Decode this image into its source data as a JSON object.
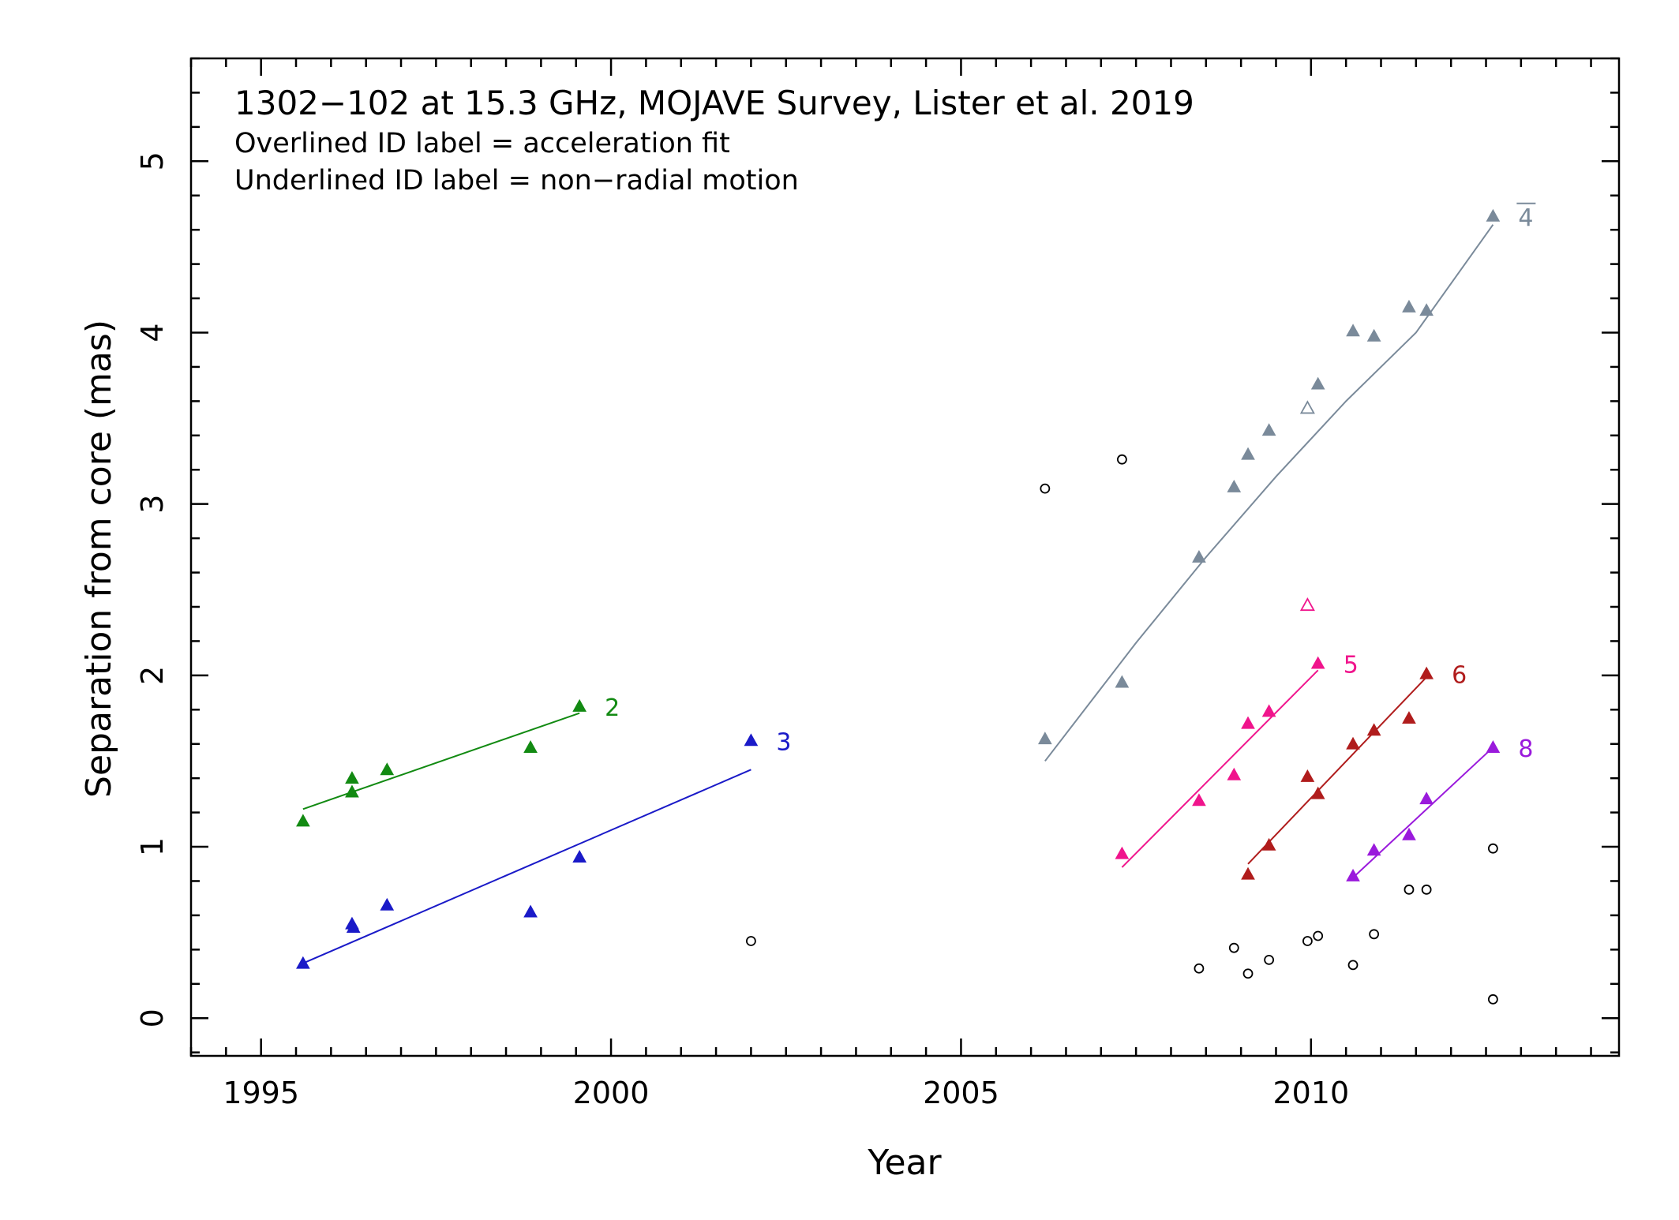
{
  "chart_data": {
    "type": "scatter",
    "title": "1302−102 at 15.3 GHz, MOJAVE Survey, Lister et al. 2019",
    "subtitle_lines": [
      "Overlined ID label = acceleration fit",
      "Underlined ID label = non−radial motion"
    ],
    "xlabel": "Year",
    "ylabel": "Separation from core (mas)",
    "xlim": [
      1994,
      2014.4
    ],
    "ylim": [
      -0.22,
      5.6
    ],
    "xticks": [
      1995,
      2000,
      2005,
      2010
    ],
    "yticks": [
      0,
      1,
      2,
      3,
      4,
      5
    ],
    "grid": false,
    "legend": "none",
    "core_points": {
      "marker": "open-circle",
      "color": "#000000",
      "points": [
        [
          2002.0,
          0.45
        ],
        [
          2006.2,
          3.09
        ],
        [
          2007.3,
          3.26
        ],
        [
          2008.4,
          0.29
        ],
        [
          2008.9,
          0.41
        ],
        [
          2009.1,
          0.26
        ],
        [
          2009.4,
          0.34
        ],
        [
          2009.95,
          0.45
        ],
        [
          2010.1,
          0.48
        ],
        [
          2010.6,
          0.31
        ],
        [
          2010.9,
          0.49
        ],
        [
          2011.4,
          0.75
        ],
        [
          2011.65,
          0.75
        ],
        [
          2012.6,
          0.99
        ],
        [
          2012.6,
          0.11
        ]
      ]
    },
    "series": [
      {
        "name": "2",
        "color": "#128a12",
        "label_decoration": "none",
        "points": [
          [
            1995.6,
            1.15
          ],
          [
            1996.3,
            1.32
          ],
          [
            1996.3,
            1.4
          ],
          [
            1996.8,
            1.45
          ],
          [
            1998.85,
            1.58
          ],
          [
            1999.55,
            1.82
          ]
        ],
        "open_points": [],
        "fit": [
          [
            1995.6,
            1.22
          ],
          [
            1999.55,
            1.78
          ]
        ]
      },
      {
        "name": "3",
        "color": "#1a1ac8",
        "label_decoration": "none",
        "points": [
          [
            1995.6,
            0.32
          ],
          [
            1996.3,
            0.55
          ],
          [
            1996.32,
            0.53
          ],
          [
            1996.8,
            0.66
          ],
          [
            1998.85,
            0.62
          ],
          [
            1999.55,
            0.94
          ],
          [
            2002.0,
            1.62
          ]
        ],
        "open_points": [],
        "fit": [
          [
            1995.6,
            0.32
          ],
          [
            2002.0,
            1.45
          ]
        ]
      },
      {
        "name": "4",
        "color": "#7a8a9a",
        "label_decoration": "overline",
        "points": [
          [
            2006.2,
            1.63
          ],
          [
            2007.3,
            1.96
          ],
          [
            2008.4,
            2.69
          ],
          [
            2008.9,
            3.1
          ],
          [
            2009.1,
            3.29
          ],
          [
            2009.4,
            3.43
          ],
          [
            2010.1,
            3.7
          ],
          [
            2010.6,
            4.01
          ],
          [
            2010.9,
            3.98
          ],
          [
            2011.4,
            4.15
          ],
          [
            2011.65,
            4.13
          ],
          [
            2012.6,
            4.68
          ]
        ],
        "open_points": [
          [
            2009.95,
            3.56
          ]
        ],
        "fit": [
          [
            2006.2,
            1.5
          ],
          [
            2007.5,
            2.19
          ],
          [
            2008.5,
            2.69
          ],
          [
            2009.5,
            3.16
          ],
          [
            2010.5,
            3.6
          ],
          [
            2011.5,
            4.0
          ],
          [
            2012.6,
            4.63
          ]
        ]
      },
      {
        "name": "5",
        "color": "#f0148c",
        "label_decoration": "none",
        "points": [
          [
            2007.3,
            0.96
          ],
          [
            2008.4,
            1.27
          ],
          [
            2008.9,
            1.42
          ],
          [
            2009.1,
            1.72
          ],
          [
            2009.4,
            1.79
          ],
          [
            2010.1,
            2.07
          ]
        ],
        "open_points": [
          [
            2009.95,
            2.41
          ]
        ],
        "fit": [
          [
            2007.3,
            0.88
          ],
          [
            2010.1,
            2.03
          ]
        ]
      },
      {
        "name": "6",
        "color": "#b01c1c",
        "label_decoration": "none",
        "points": [
          [
            2009.1,
            0.84
          ],
          [
            2009.4,
            1.01
          ],
          [
            2009.95,
            1.41
          ],
          [
            2010.1,
            1.31
          ],
          [
            2010.6,
            1.6
          ],
          [
            2010.9,
            1.68
          ],
          [
            2011.4,
            1.75
          ],
          [
            2011.65,
            2.01
          ]
        ],
        "open_points": [],
        "fit": [
          [
            2009.1,
            0.9
          ],
          [
            2011.65,
            1.99
          ]
        ]
      },
      {
        "name": "8",
        "color": "#9a1adc",
        "label_decoration": "none",
        "points": [
          [
            2010.6,
            0.83
          ],
          [
            2010.9,
            0.98
          ],
          [
            2011.4,
            1.07
          ],
          [
            2011.65,
            1.28
          ],
          [
            2012.6,
            1.58
          ]
        ],
        "open_points": [],
        "fit": [
          [
            2010.6,
            0.82
          ],
          [
            2012.6,
            1.58
          ]
        ]
      }
    ]
  }
}
